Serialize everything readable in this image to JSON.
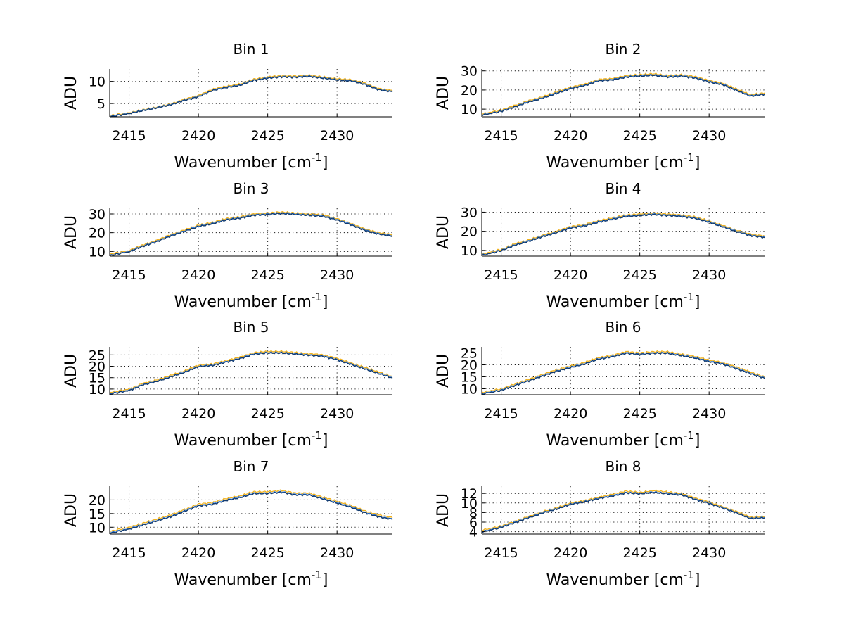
{
  "chart_data": [
    {
      "type": "line",
      "title": "Bin 1",
      "xlabel_main": "Wavenumber [cm",
      "xlabel_sup": "-1",
      "xlabel_end": "]",
      "ylabel": "ADU",
      "xlim": [
        2413.6,
        2434.0
      ],
      "ylim": [
        2.0,
        12.8
      ],
      "xticks": [
        2415,
        2420,
        2425,
        2430
      ],
      "yticks": [
        5,
        10
      ],
      "x": [
        2413.6,
        2415,
        2416,
        2417,
        2418,
        2419,
        2420,
        2421,
        2422,
        2423,
        2424,
        2425,
        2426,
        2427,
        2428,
        2429,
        2430,
        2431,
        2432,
        2433,
        2434
      ],
      "series": [
        {
          "values": [
            2.3,
            2.9,
            3.6,
            4.2,
            4.9,
            6.0,
            6.8,
            8.2,
            8.9,
            9.4,
            10.5,
            11.0,
            11.3,
            11.2,
            11.4,
            11.0,
            10.6,
            10.4,
            9.6,
            8.4,
            7.9
          ],
          "color": "#f2b21c"
        },
        {
          "values": [
            2.1,
            2.8,
            3.5,
            4.1,
            4.8,
            5.8,
            6.6,
            8.0,
            8.7,
            9.2,
            10.3,
            10.8,
            11.1,
            11.0,
            11.2,
            10.8,
            10.4,
            10.2,
            9.4,
            8.2,
            7.7
          ],
          "color": "#3a7fd6"
        },
        {
          "values": [
            2.0,
            2.7,
            3.4,
            4.0,
            4.7,
            5.7,
            6.5,
            7.9,
            8.6,
            9.1,
            10.2,
            10.7,
            11.0,
            10.9,
            11.1,
            10.7,
            10.3,
            10.1,
            9.3,
            8.1,
            7.6
          ],
          "color": "#123a6e"
        }
      ]
    },
    {
      "type": "line",
      "title": "Bin 2",
      "xlabel_main": "Wavenumber [cm",
      "xlabel_sup": "-1",
      "xlabel_end": "]",
      "ylabel": "ADU",
      "xlim": [
        2413.6,
        2434.0
      ],
      "ylim": [
        6.0,
        31.0
      ],
      "xticks": [
        2415,
        2420,
        2425,
        2430
      ],
      "yticks": [
        10,
        20,
        30
      ],
      "x": [
        2413.6,
        2415,
        2416,
        2417,
        2418,
        2419,
        2420,
        2421,
        2422,
        2423,
        2424,
        2425,
        2426,
        2427,
        2428,
        2429,
        2430,
        2431,
        2432,
        2433,
        2434
      ],
      "series": [
        {
          "values": [
            7.5,
            9.5,
            12.0,
            14.5,
            16.5,
            19.0,
            21.5,
            23.0,
            25.5,
            26.0,
            27.5,
            28.0,
            28.5,
            27.5,
            28.0,
            27.0,
            25.0,
            23.5,
            20.5,
            17.5,
            18.5
          ],
          "color": "#f2b21c"
        },
        {
          "values": [
            7.0,
            9.0,
            11.5,
            14.0,
            16.0,
            18.5,
            21.0,
            22.5,
            25.0,
            25.5,
            27.0,
            27.5,
            28.0,
            27.0,
            27.5,
            26.5,
            24.5,
            23.0,
            20.0,
            17.0,
            18.0
          ],
          "color": "#3a7fd6"
        },
        {
          "values": [
            6.8,
            8.8,
            11.2,
            13.7,
            15.7,
            18.2,
            20.7,
            22.2,
            24.7,
            25.2,
            26.7,
            27.2,
            27.7,
            26.7,
            27.2,
            26.2,
            24.2,
            22.7,
            19.7,
            16.7,
            17.7
          ],
          "color": "#123a6e"
        }
      ]
    },
    {
      "type": "line",
      "title": "Bin 3",
      "xlabel_main": "Wavenumber [cm",
      "xlabel_sup": "-1",
      "xlabel_end": "]",
      "ylabel": "ADU",
      "xlim": [
        2413.6,
        2434.0
      ],
      "ylim": [
        7.5,
        33.0
      ],
      "xticks": [
        2415,
        2420,
        2425,
        2430
      ],
      "yticks": [
        10,
        20,
        30
      ],
      "x": [
        2413.6,
        2415,
        2416,
        2417,
        2418,
        2419,
        2420,
        2421,
        2422,
        2423,
        2424,
        2425,
        2426,
        2427,
        2428,
        2429,
        2430,
        2431,
        2432,
        2433,
        2434
      ],
      "series": [
        {
          "values": [
            8.5,
            10.5,
            13.5,
            16.0,
            19.0,
            21.5,
            24.0,
            25.5,
            27.5,
            28.5,
            30.0,
            30.5,
            31.0,
            30.5,
            30.0,
            29.5,
            27.5,
            25.0,
            22.0,
            20.0,
            19.0
          ],
          "color": "#f2b21c"
        },
        {
          "values": [
            8.0,
            10.0,
            13.0,
            15.5,
            18.5,
            21.0,
            23.5,
            25.0,
            27.0,
            28.0,
            29.5,
            30.0,
            30.5,
            30.0,
            29.5,
            29.0,
            27.0,
            24.5,
            21.5,
            19.5,
            18.5
          ],
          "color": "#3a7fd6"
        },
        {
          "values": [
            7.8,
            9.8,
            12.7,
            15.2,
            18.2,
            20.7,
            23.2,
            24.7,
            26.7,
            27.7,
            29.2,
            29.7,
            30.2,
            29.7,
            29.2,
            28.7,
            26.7,
            24.2,
            21.2,
            19.2,
            18.2
          ],
          "color": "#123a6e"
        }
      ]
    },
    {
      "type": "line",
      "title": "Bin 4",
      "xlabel_main": "Wavenumber [cm",
      "xlabel_sup": "-1",
      "xlabel_end": "]",
      "ylabel": "ADU",
      "xlim": [
        2413.6,
        2434.0
      ],
      "ylim": [
        7.0,
        32.0
      ],
      "xticks": [
        2415,
        2420,
        2425,
        2430
      ],
      "yticks": [
        10,
        20,
        30
      ],
      "x": [
        2413.6,
        2415,
        2416,
        2417,
        2418,
        2419,
        2420,
        2421,
        2422,
        2423,
        2424,
        2425,
        2426,
        2427,
        2428,
        2429,
        2430,
        2431,
        2432,
        2433,
        2434
      ],
      "series": [
        {
          "values": [
            8.0,
            10.5,
            13.5,
            15.5,
            18.0,
            20.0,
            22.5,
            23.5,
            25.5,
            27.0,
            28.5,
            29.0,
            29.5,
            29.0,
            28.5,
            27.5,
            25.5,
            23.0,
            20.5,
            18.5,
            17.5
          ],
          "color": "#f2b21c"
        },
        {
          "values": [
            7.5,
            10.0,
            13.0,
            15.0,
            17.5,
            19.5,
            22.0,
            23.0,
            25.0,
            26.5,
            28.0,
            28.5,
            29.0,
            28.5,
            28.0,
            27.0,
            25.0,
            22.5,
            20.0,
            18.0,
            17.0
          ],
          "color": "#3a7fd6"
        },
        {
          "values": [
            7.3,
            9.8,
            12.7,
            14.7,
            17.2,
            19.2,
            21.7,
            22.7,
            24.7,
            26.2,
            27.7,
            28.2,
            28.7,
            28.2,
            27.7,
            26.7,
            24.7,
            22.2,
            19.7,
            17.7,
            16.7
          ],
          "color": "#123a6e"
        }
      ]
    },
    {
      "type": "line",
      "title": "Bin 5",
      "xlabel_main": "Wavenumber [cm",
      "xlabel_sup": "-1",
      "xlabel_end": "]",
      "ylabel": "ADU",
      "xlim": [
        2413.6,
        2434.0
      ],
      "ylim": [
        7.5,
        28.5
      ],
      "xticks": [
        2415,
        2420,
        2425,
        2430
      ],
      "yticks": [
        10,
        15,
        20,
        25
      ],
      "x": [
        2413.6,
        2415,
        2416,
        2417,
        2418,
        2419,
        2420,
        2421,
        2422,
        2423,
        2424,
        2425,
        2426,
        2427,
        2428,
        2429,
        2430,
        2431,
        2432,
        2433,
        2434
      ],
      "series": [
        {
          "values": [
            8.5,
            10.0,
            12.5,
            14.0,
            16.0,
            18.0,
            20.5,
            21.0,
            22.5,
            24.0,
            26.0,
            26.5,
            26.5,
            26.0,
            25.5,
            25.0,
            23.5,
            21.5,
            19.5,
            17.5,
            15.5
          ],
          "color": "#f2b21c"
        },
        {
          "values": [
            8.0,
            9.5,
            12.0,
            13.5,
            15.5,
            17.5,
            20.0,
            20.5,
            22.0,
            23.5,
            25.5,
            26.0,
            26.0,
            25.5,
            25.0,
            24.5,
            23.0,
            21.0,
            19.0,
            17.0,
            15.0
          ],
          "color": "#3a7fd6"
        },
        {
          "values": [
            7.8,
            9.3,
            11.8,
            13.3,
            15.3,
            17.3,
            19.8,
            20.3,
            21.8,
            23.3,
            25.3,
            25.8,
            25.8,
            25.3,
            24.8,
            24.3,
            22.8,
            20.8,
            18.8,
            16.8,
            14.8
          ],
          "color": "#123a6e"
        }
      ]
    },
    {
      "type": "line",
      "title": "Bin 6",
      "xlabel_main": "Wavenumber [cm",
      "xlabel_sup": "-1",
      "xlabel_end": "]",
      "ylabel": "ADU",
      "xlim": [
        2413.6,
        2434.0
      ],
      "ylim": [
        7.5,
        27.5
      ],
      "xticks": [
        2415,
        2420,
        2425,
        2430
      ],
      "yticks": [
        10,
        15,
        20,
        25
      ],
      "x": [
        2413.6,
        2415,
        2416,
        2417,
        2418,
        2419,
        2420,
        2421,
        2422,
        2423,
        2424,
        2425,
        2426,
        2427,
        2428,
        2429,
        2430,
        2431,
        2432,
        2433,
        2434
      ],
      "series": [
        {
          "values": [
            8.5,
            10.0,
            12.0,
            14.0,
            16.0,
            18.0,
            19.5,
            21.0,
            23.0,
            24.0,
            25.5,
            25.0,
            25.5,
            25.5,
            24.5,
            23.5,
            22.0,
            21.0,
            19.0,
            17.0,
            15.0
          ],
          "color": "#f2b21c"
        },
        {
          "values": [
            8.0,
            9.5,
            11.5,
            13.5,
            15.5,
            17.5,
            19.0,
            20.5,
            22.5,
            23.5,
            25.0,
            24.5,
            25.0,
            25.0,
            24.0,
            23.0,
            21.5,
            20.5,
            18.5,
            16.5,
            14.5
          ],
          "color": "#3a7fd6"
        },
        {
          "values": [
            7.8,
            9.3,
            11.3,
            13.3,
            15.3,
            17.3,
            18.8,
            20.3,
            22.3,
            23.3,
            24.8,
            24.3,
            24.8,
            24.8,
            23.8,
            22.8,
            21.3,
            20.3,
            18.3,
            16.3,
            14.3
          ],
          "color": "#123a6e"
        }
      ]
    },
    {
      "type": "line",
      "title": "Bin 7",
      "xlabel_main": "Wavenumber [cm",
      "xlabel_sup": "-1",
      "xlabel_end": "]",
      "ylabel": "ADU",
      "xlim": [
        2413.6,
        2434.0
      ],
      "ylim": [
        7.5,
        25.0
      ],
      "xticks": [
        2415,
        2420,
        2425,
        2430
      ],
      "yticks": [
        10,
        15,
        20
      ],
      "x": [
        2413.6,
        2415,
        2416,
        2417,
        2418,
        2419,
        2420,
        2421,
        2422,
        2423,
        2424,
        2425,
        2426,
        2427,
        2428,
        2429,
        2430,
        2431,
        2432,
        2433,
        2434
      ],
      "series": [
        {
          "values": [
            8.5,
            10.0,
            11.5,
            13.0,
            14.5,
            16.5,
            18.5,
            19.0,
            20.5,
            21.5,
            23.0,
            23.0,
            23.5,
            22.5,
            22.5,
            21.0,
            19.5,
            18.0,
            16.0,
            14.5,
            13.5
          ],
          "color": "#f2b21c"
        },
        {
          "values": [
            8.0,
            9.5,
            11.0,
            12.5,
            14.0,
            16.0,
            18.0,
            18.5,
            20.0,
            21.0,
            22.5,
            22.5,
            23.0,
            22.0,
            22.0,
            20.5,
            19.0,
            17.5,
            15.5,
            14.0,
            13.0
          ],
          "color": "#3a7fd6"
        },
        {
          "values": [
            7.8,
            9.3,
            10.8,
            12.3,
            13.8,
            15.8,
            17.8,
            18.3,
            19.8,
            20.8,
            22.3,
            22.3,
            22.8,
            21.8,
            21.8,
            20.3,
            18.8,
            17.3,
            15.3,
            13.8,
            12.8
          ],
          "color": "#123a6e"
        }
      ]
    },
    {
      "type": "line",
      "title": "Bin 8",
      "xlabel_main": "Wavenumber [cm",
      "xlabel_sup": "-1",
      "xlabel_end": "]",
      "ylabel": "ADU",
      "xlim": [
        2413.6,
        2434.0
      ],
      "ylim": [
        3.5,
        13.5
      ],
      "xticks": [
        2415,
        2420,
        2425,
        2430
      ],
      "yticks": [
        4,
        6,
        8,
        10,
        12
      ],
      "x": [
        2413.6,
        2415,
        2416,
        2417,
        2418,
        2419,
        2420,
        2421,
        2422,
        2423,
        2424,
        2425,
        2426,
        2427,
        2428,
        2429,
        2430,
        2431,
        2432,
        2433,
        2434
      ],
      "series": [
        {
          "values": [
            4.3,
            5.2,
            6.2,
            7.2,
            8.2,
            9.0,
            10.0,
            10.5,
            11.2,
            11.8,
            12.5,
            12.2,
            12.6,
            12.3,
            12.0,
            11.0,
            10.2,
            9.2,
            8.2,
            7.0,
            7.2
          ],
          "color": "#f2b21c"
        },
        {
          "values": [
            4.0,
            5.0,
            6.0,
            7.0,
            8.0,
            8.8,
            9.8,
            10.3,
            11.0,
            11.5,
            12.2,
            12.0,
            12.3,
            12.0,
            11.8,
            10.8,
            10.0,
            9.0,
            8.0,
            6.8,
            7.0
          ],
          "color": "#3a7fd6"
        },
        {
          "values": [
            3.9,
            4.9,
            5.9,
            6.9,
            7.9,
            8.7,
            9.7,
            10.2,
            10.9,
            11.4,
            12.1,
            11.9,
            12.2,
            11.9,
            11.7,
            10.7,
            9.9,
            8.9,
            7.9,
            6.7,
            6.9
          ],
          "color": "#123a6e"
        }
      ]
    }
  ]
}
